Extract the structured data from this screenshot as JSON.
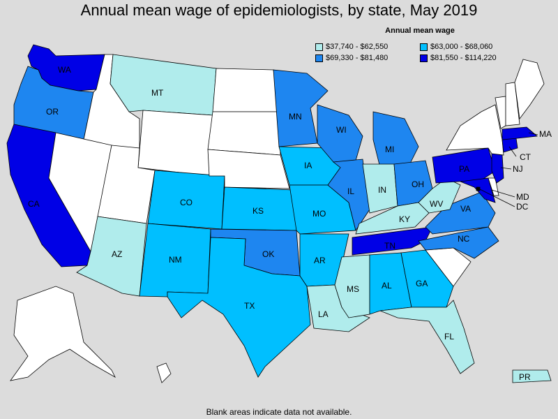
{
  "title": "Annual mean wage of epidemiologists, by state, May 2019",
  "legend": {
    "title": "Annual mean wage",
    "items": [
      {
        "label": "$37,740 - $62,550",
        "color": "#b0ecec"
      },
      {
        "label": "$63,000 - $68,060",
        "color": "#00bfff"
      },
      {
        "label": "$69,330 - $81,480",
        "color": "#1e86f0"
      },
      {
        "label": "$81,550 - $114,220",
        "color": "#0000e6"
      }
    ]
  },
  "footer": "Blank areas indicate data not available.",
  "colors": {
    "no_data": "#ffffff",
    "tier1": "#b0ecec",
    "tier2": "#00bfff",
    "tier3": "#1e86f0",
    "tier4": "#0000e6",
    "background": "#dcdcdc"
  },
  "state_labels": {
    "WA": "WA",
    "OR": "OR",
    "CA": "CA",
    "MT": "MT",
    "AZ": "AZ",
    "NM": "NM",
    "CO": "CO",
    "TX": "TX",
    "KS": "KS",
    "OK": "OK",
    "MN": "MN",
    "IA": "IA",
    "MO": "MO",
    "AR": "AR",
    "LA": "LA",
    "WI": "WI",
    "IL": "IL",
    "MS": "MS",
    "MI": "MI",
    "IN": "IN",
    "KY": "KY",
    "TN": "TN",
    "AL": "AL",
    "GA": "GA",
    "FL": "FL",
    "OH": "OH",
    "WV": "WV",
    "VA": "VA",
    "NC": "NC",
    "PA": "PA",
    "NJ": "NJ",
    "MD": "MD",
    "DC": "DC",
    "CT": "CT",
    "MA": "MA",
    "PR": "PR"
  }
}
